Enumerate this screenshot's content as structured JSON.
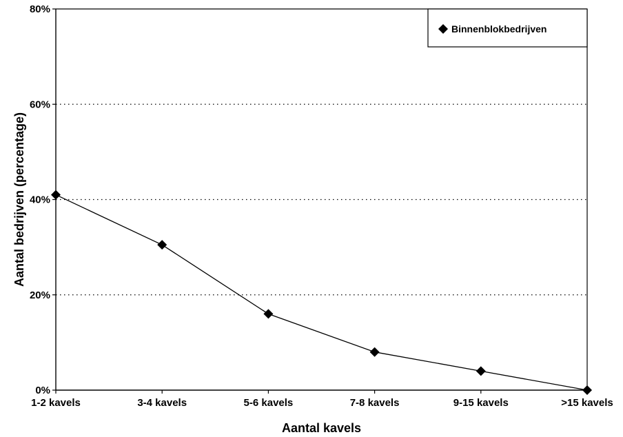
{
  "chart_data": {
    "type": "line",
    "title": "",
    "xlabel": "Aantal kavels",
    "ylabel": "Aantal bedrijven (percentage)",
    "categories": [
      "1-2 kavels",
      "3-4 kavels",
      "5-6 kavels",
      "7-8 kavels",
      "9-15 kavels",
      ">15 kavels"
    ],
    "series": [
      {
        "name": "Binnenblokbedrijven",
        "values": [
          41,
          30.5,
          16,
          8,
          4,
          0
        ],
        "marker": "diamond",
        "color": "#000000"
      }
    ],
    "ylim": [
      0,
      80
    ],
    "yticks": [
      0,
      20,
      40,
      60,
      80
    ],
    "ytick_labels": [
      "0%",
      "20%",
      "40%",
      "60%",
      "80%"
    ],
    "grid": "horizontal-dotted",
    "legend_position": "top-right"
  }
}
